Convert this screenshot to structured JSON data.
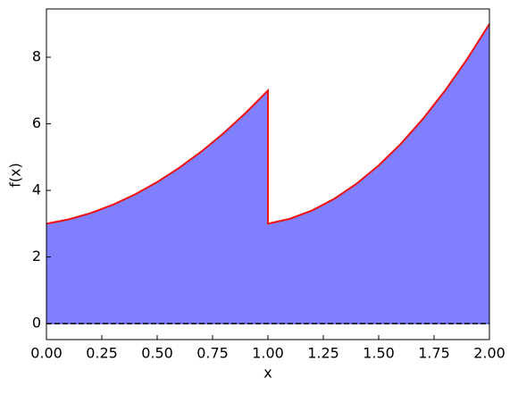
{
  "chart_data": {
    "type": "area",
    "x_label": "x",
    "y_label": "f(x)",
    "x": [
      0,
      0.1,
      0.2,
      0.3,
      0.4,
      0.5,
      0.6,
      0.7,
      0.8,
      0.9,
      1,
      1,
      1.1,
      1.2,
      1.3,
      1.4,
      1.5,
      1.6,
      1.7,
      1.8,
      1.9,
      2
    ],
    "series": [
      {
        "color": "#ee1111",
        "fill": "#8080ff",
        "values": [
          3,
          3.13,
          3.32,
          3.57,
          3.88,
          4.25,
          4.68,
          5.17,
          5.72,
          6.33,
          7,
          3,
          3.15,
          3.4,
          3.75,
          4.2,
          4.75,
          5.4,
          6.15,
          7,
          7.95,
          9
        ]
      }
    ],
    "xlim": [
      0,
      2
    ],
    "ylim": [
      -0.48,
      9.45
    ],
    "xticks": [
      {
        "value": 0,
        "label": "0.00"
      },
      {
        "value": 0.25,
        "label": "0.25"
      },
      {
        "value": 0.5,
        "label": "0.50"
      },
      {
        "value": 0.75,
        "label": "0.75"
      },
      {
        "value": 1,
        "label": "1.00"
      },
      {
        "value": 1.25,
        "label": "1.25"
      },
      {
        "value": 1.5,
        "label": "1.50"
      },
      {
        "value": 1.75,
        "label": "1.75"
      },
      {
        "value": 2,
        "label": "2.00"
      }
    ],
    "yticks": [
      0,
      2,
      4,
      6,
      8
    ],
    "hline": {
      "y": 0,
      "color": "#000000",
      "dashed": true
    },
    "grid": false
  }
}
